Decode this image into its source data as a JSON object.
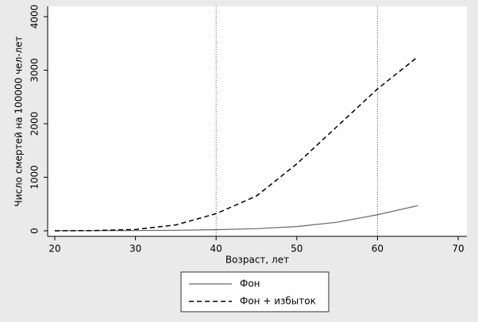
{
  "chart_data": {
    "type": "line",
    "x_label": "Возраст, лет",
    "y_label": "Число смертей на 100000 чел-лет",
    "x": [
      20,
      25,
      30,
      35,
      40,
      45,
      50,
      55,
      60,
      65
    ],
    "series": [
      {
        "name": "Фон",
        "color": "#666666",
        "dash": false,
        "values": [
          2,
          3,
          5,
          10,
          20,
          40,
          80,
          160,
          300,
          470
        ]
      },
      {
        "name": "Фон + избыток",
        "color": "#000000",
        "dash": true,
        "values": [
          0,
          5,
          25,
          110,
          320,
          650,
          1250,
          1950,
          2650,
          3250
        ]
      }
    ],
    "xlim": [
      20,
      70
    ],
    "xticks": [
      20,
      30,
      40,
      50,
      60,
      70
    ],
    "ylim": [
      0,
      4000
    ],
    "yticks": [
      0,
      1000,
      2000,
      3000,
      4000
    ],
    "xlines": [
      40,
      60
    ]
  }
}
